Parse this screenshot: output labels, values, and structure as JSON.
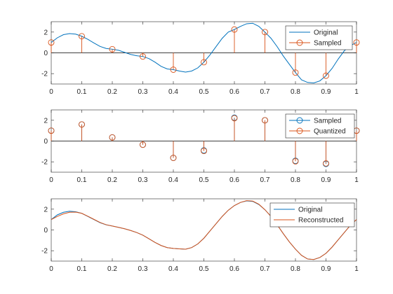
{
  "colors": {
    "blue": "#0072BD",
    "orange": "#D95319",
    "axis": "#262626",
    "background": "#ffffff"
  },
  "chart_data": [
    {
      "type": "line",
      "title": "",
      "xlabel": "",
      "ylabel": "",
      "xlim": [
        0,
        1
      ],
      "ylim": [
        -3,
        3
      ],
      "xticks": [
        0,
        0.1,
        0.2,
        0.3,
        0.4,
        0.5,
        0.6,
        0.7,
        0.8,
        0.9,
        1
      ],
      "xtick_labels": [
        "0",
        "0.1",
        "0.2",
        "0.3",
        "0.4",
        "0.5",
        "0.6",
        "0.7",
        "0.8",
        "0.9",
        "1"
      ],
      "yticks": [
        -2,
        0,
        2
      ],
      "ytick_labels": [
        "-2",
        "0",
        "2"
      ],
      "grid": false,
      "legend_position": "top-right",
      "series": [
        {
          "name": "Original",
          "kind": "line",
          "color": "#0072BD",
          "x": [
            0,
            0.02,
            0.04,
            0.06,
            0.08,
            0.1,
            0.12,
            0.14,
            0.16,
            0.18,
            0.2,
            0.22,
            0.24,
            0.26,
            0.28,
            0.3,
            0.32,
            0.34,
            0.36,
            0.38,
            0.4,
            0.42,
            0.44,
            0.46,
            0.48,
            0.5,
            0.52,
            0.54,
            0.56,
            0.58,
            0.6,
            0.62,
            0.64,
            0.66,
            0.68,
            0.7,
            0.72,
            0.74,
            0.76,
            0.78,
            0.8,
            0.82,
            0.84,
            0.86,
            0.88,
            0.9,
            0.92,
            0.94,
            0.96,
            0.98,
            1
          ],
          "y": [
            1.0,
            1.45,
            1.75,
            1.85,
            1.8,
            1.6,
            1.3,
            0.95,
            0.62,
            0.42,
            0.35,
            0.25,
            0.05,
            -0.15,
            -0.28,
            -0.35,
            -0.55,
            -0.9,
            -1.3,
            -1.55,
            -1.62,
            -1.75,
            -1.85,
            -1.75,
            -1.45,
            -0.9,
            -0.2,
            0.6,
            1.4,
            2.0,
            2.25,
            2.55,
            2.8,
            2.85,
            2.55,
            2.0,
            1.4,
            0.6,
            -0.3,
            -1.1,
            -1.9,
            -2.6,
            -2.85,
            -2.9,
            -2.7,
            -2.2,
            -1.5,
            -0.6,
            0.2,
            0.7,
            1.0
          ]
        },
        {
          "name": "Sampled",
          "kind": "stem",
          "color": "#D95319",
          "x": [
            0,
            0.1,
            0.2,
            0.3,
            0.4,
            0.5,
            0.6,
            0.7,
            0.8,
            0.9,
            1
          ],
          "y": [
            1.0,
            1.6,
            0.35,
            -0.35,
            -1.62,
            -0.9,
            2.25,
            2.0,
            -1.9,
            -2.2,
            1.0
          ]
        }
      ]
    },
    {
      "type": "scatter",
      "title": "",
      "xlabel": "",
      "ylabel": "",
      "xlim": [
        0,
        1
      ],
      "ylim": [
        -3,
        3
      ],
      "xticks": [
        0,
        0.1,
        0.2,
        0.3,
        0.4,
        0.5,
        0.6,
        0.7,
        0.8,
        0.9,
        1
      ],
      "xtick_labels": [
        "0",
        "0.1",
        "0.2",
        "0.3",
        "0.4",
        "0.5",
        "0.6",
        "0.7",
        "0.8",
        "0.9",
        "1"
      ],
      "yticks": [
        -2,
        0,
        2
      ],
      "ytick_labels": [
        "-2",
        "0",
        "2"
      ],
      "grid": false,
      "legend_position": "top-right",
      "series": [
        {
          "name": "Sampled",
          "kind": "stem",
          "color": "#0072BD",
          "x": [
            0,
            0.1,
            0.2,
            0.3,
            0.4,
            0.5,
            0.6,
            0.7,
            0.8,
            0.9,
            1
          ],
          "y": [
            1.0,
            1.6,
            0.35,
            -0.35,
            -1.62,
            -0.9,
            2.25,
            2.0,
            -1.9,
            -2.2,
            1.0
          ]
        },
        {
          "name": "Quantized",
          "kind": "stem",
          "color": "#D95319",
          "x": [
            0,
            0.1,
            0.2,
            0.3,
            0.4,
            0.5,
            0.6,
            0.7,
            0.8,
            0.9,
            1
          ],
          "y": [
            1.0,
            1.6,
            0.35,
            -0.35,
            -1.62,
            -0.95,
            2.2,
            2.0,
            -1.95,
            -2.15,
            1.0
          ]
        }
      ]
    },
    {
      "type": "line",
      "title": "",
      "xlabel": "",
      "ylabel": "",
      "xlim": [
        0,
        1
      ],
      "ylim": [
        -3,
        3
      ],
      "xticks": [
        0,
        0.1,
        0.2,
        0.3,
        0.4,
        0.5,
        0.6,
        0.7,
        0.8,
        0.9,
        1
      ],
      "xtick_labels": [
        "0",
        "0.1",
        "0.2",
        "0.3",
        "0.4",
        "0.5",
        "0.6",
        "0.7",
        "0.8",
        "0.9",
        "1"
      ],
      "yticks": [
        -2,
        0,
        2
      ],
      "ytick_labels": [
        "-2",
        "0",
        "2"
      ],
      "grid": false,
      "legend_position": "top-right",
      "series": [
        {
          "name": "Original",
          "kind": "line",
          "color": "#0072BD",
          "x": [
            0,
            0.02,
            0.04,
            0.06,
            0.08,
            0.1,
            0.12,
            0.14,
            0.16,
            0.18,
            0.2,
            0.22,
            0.24,
            0.26,
            0.28,
            0.3,
            0.32,
            0.34,
            0.36,
            0.38,
            0.4,
            0.42,
            0.44,
            0.46,
            0.48,
            0.5,
            0.52,
            0.54,
            0.56,
            0.58,
            0.6,
            0.62,
            0.64,
            0.66,
            0.68,
            0.7,
            0.72,
            0.74,
            0.76,
            0.78,
            0.8,
            0.82,
            0.84,
            0.86,
            0.88,
            0.9,
            0.92,
            0.94,
            0.96,
            0.98,
            1
          ],
          "y": [
            1.0,
            1.45,
            1.7,
            1.8,
            1.75,
            1.6,
            1.3,
            1.0,
            0.7,
            0.5,
            0.38,
            0.25,
            0.12,
            -0.05,
            -0.25,
            -0.5,
            -0.85,
            -1.2,
            -1.5,
            -1.7,
            -1.78,
            -1.82,
            -1.85,
            -1.7,
            -1.35,
            -0.8,
            -0.1,
            0.6,
            1.3,
            1.9,
            2.35,
            2.65,
            2.8,
            2.75,
            2.45,
            1.95,
            1.3,
            0.5,
            -0.35,
            -1.15,
            -1.85,
            -2.45,
            -2.8,
            -2.85,
            -2.65,
            -2.25,
            -1.65,
            -0.95,
            -0.25,
            0.45,
            1.0
          ]
        },
        {
          "name": "Reconstructed",
          "kind": "line",
          "color": "#D95319",
          "x": [
            0,
            0.02,
            0.04,
            0.06,
            0.08,
            0.1,
            0.12,
            0.14,
            0.16,
            0.18,
            0.2,
            0.22,
            0.24,
            0.26,
            0.28,
            0.3,
            0.32,
            0.34,
            0.36,
            0.38,
            0.4,
            0.42,
            0.44,
            0.46,
            0.48,
            0.5,
            0.52,
            0.54,
            0.56,
            0.58,
            0.6,
            0.62,
            0.64,
            0.66,
            0.68,
            0.7,
            0.72,
            0.74,
            0.76,
            0.78,
            0.8,
            0.82,
            0.84,
            0.86,
            0.88,
            0.9,
            0.92,
            0.94,
            0.96,
            0.98,
            1
          ],
          "y": [
            1.0,
            1.3,
            1.55,
            1.7,
            1.72,
            1.6,
            1.32,
            1.02,
            0.72,
            0.5,
            0.38,
            0.25,
            0.12,
            -0.05,
            -0.25,
            -0.5,
            -0.85,
            -1.2,
            -1.5,
            -1.7,
            -1.78,
            -1.82,
            -1.85,
            -1.7,
            -1.35,
            -0.8,
            -0.1,
            0.6,
            1.3,
            1.9,
            2.35,
            2.65,
            2.82,
            2.78,
            2.48,
            1.95,
            1.3,
            0.5,
            -0.35,
            -1.15,
            -1.85,
            -2.45,
            -2.8,
            -2.85,
            -2.65,
            -2.25,
            -1.65,
            -0.95,
            -0.25,
            0.45,
            1.0
          ]
        }
      ]
    }
  ]
}
